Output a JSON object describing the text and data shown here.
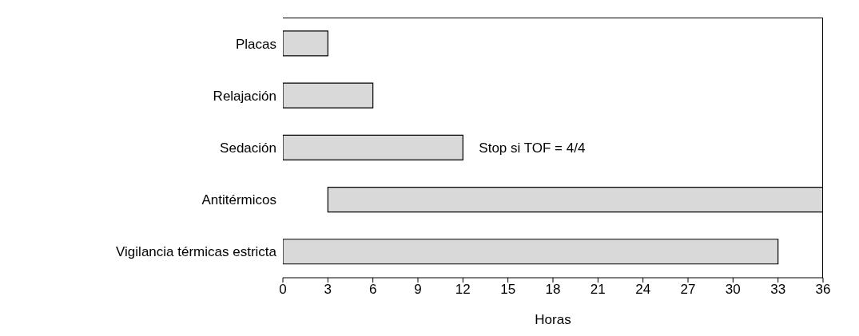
{
  "chart_data": {
    "type": "bar",
    "orientation": "horizontal",
    "categories": [
      "Placas",
      "Relajación",
      "Sedación",
      "Antitérmicos",
      "Vigilancia térmicas estricta"
    ],
    "values": [
      3,
      6,
      12,
      33,
      33
    ],
    "base": [
      0,
      0,
      0,
      3,
      0
    ],
    "color": "#d9d9d9",
    "xlabel": "Horas",
    "xlim": [
      0,
      36
    ],
    "xticks": [
      0,
      3,
      6,
      9,
      12,
      15,
      18,
      21,
      24,
      27,
      30,
      33,
      36
    ],
    "annotations": [
      {
        "text": "Stop si TOF = 4/4",
        "x": 12,
        "y": "Sedación"
      }
    ],
    "grid": false,
    "legend": false
  }
}
